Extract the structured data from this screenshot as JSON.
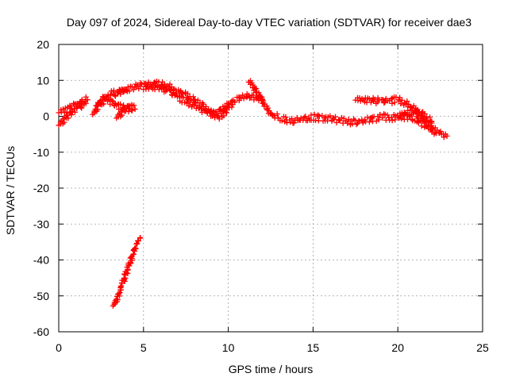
{
  "chart_data": {
    "type": "scatter",
    "title": "Day 097 of 2024, Sidereal Day-to-day VTEC variation (SDTVAR) for receiver dae3",
    "xlabel": "GPS time / hours",
    "ylabel": "SDTVAR / TECUs",
    "xlim": [
      0,
      25
    ],
    "ylim": [
      -60,
      20
    ],
    "xticks": [
      0,
      5,
      10,
      15,
      20,
      25
    ],
    "yticks": [
      -60,
      -50,
      -40,
      -30,
      -20,
      -10,
      0,
      10,
      20
    ],
    "grid": true,
    "marker": "+",
    "color": "#ff0000",
    "series": [
      {
        "name": "early-lower",
        "x": [
          0.0,
          0.2,
          0.4,
          0.6,
          0.8,
          1.0,
          1.2,
          1.4,
          1.6
        ],
        "y": [
          -2.5,
          -1.5,
          -0.5,
          0.5,
          1.5,
          2.3,
          2.8,
          3.2,
          3.6
        ]
      },
      {
        "name": "early-upper",
        "x": [
          0.0,
          0.3,
          0.6,
          0.9,
          1.2,
          1.5,
          1.7
        ],
        "y": [
          1.0,
          1.6,
          2.2,
          3.0,
          3.6,
          4.2,
          4.6
        ]
      },
      {
        "name": "hump-1",
        "x": [
          2.0,
          2.2,
          2.4,
          2.6,
          2.8,
          3.0,
          3.2,
          3.4,
          3.6,
          3.8,
          4.0
        ],
        "y": [
          0.5,
          2.0,
          3.5,
          5.0,
          5.5,
          6.0,
          6.2,
          6.5,
          6.7,
          7.0,
          7.2
        ]
      },
      {
        "name": "hump-2",
        "x": [
          2.2,
          2.5,
          2.8,
          3.1,
          3.4,
          3.7,
          4.0,
          4.3
        ],
        "y": [
          3.0,
          3.8,
          4.6,
          4.0,
          3.2,
          2.4,
          2.0,
          1.6
        ]
      },
      {
        "name": "dip",
        "x": [
          3.4,
          3.6,
          3.8,
          4.0,
          4.2,
          4.5
        ],
        "y": [
          -0.5,
          0.5,
          1.5,
          2.5,
          3.0,
          2.0
        ]
      },
      {
        "name": "main-arc",
        "x": [
          3.5,
          4.0,
          4.5,
          5.0,
          5.5,
          6.0,
          6.5,
          7.0,
          7.5,
          8.0,
          8.5,
          9.0,
          9.3,
          9.6,
          10.0,
          10.5,
          11.0,
          11.5,
          12.0,
          12.3,
          12.6,
          13.0,
          13.5,
          14.0,
          14.5,
          15.0,
          15.5,
          16.0,
          16.5,
          17.0,
          17.5,
          18.0,
          18.5,
          19.0,
          19.5,
          20.0,
          20.5,
          21.0,
          21.5,
          22.0,
          22.5,
          22.9
        ],
        "y": [
          6.5,
          7.5,
          8.2,
          8.8,
          9.0,
          8.8,
          8.2,
          7.2,
          6.0,
          4.5,
          3.0,
          1.0,
          -0.2,
          0.5,
          2.5,
          4.5,
          5.6,
          5.4,
          4.5,
          2.0,
          0.5,
          -0.5,
          -1.0,
          -1.2,
          -0.8,
          -0.2,
          -0.5,
          -0.6,
          -1.0,
          -1.4,
          -1.5,
          -1.2,
          -0.6,
          -0.2,
          -0.4,
          -0.5,
          0.0,
          -0.5,
          -2.0,
          -3.5,
          -4.5,
          -5.5
        ]
      },
      {
        "name": "secondary-arc",
        "x": [
          5.0,
          5.5,
          6.0,
          6.5,
          7.0,
          7.5,
          8.0,
          8.5,
          9.0,
          9.5,
          10.0
        ],
        "y": [
          7.5,
          8.2,
          8.0,
          7.0,
          5.5,
          4.0,
          3.0,
          2.0,
          0.5,
          1.5,
          3.5
        ]
      },
      {
        "name": "spike",
        "x": [
          11.2,
          11.4,
          11.6,
          11.8,
          12.0
        ],
        "y": [
          9.5,
          8.5,
          7.0,
          5.5,
          4.5
        ]
      },
      {
        "name": "late-upper",
        "x": [
          17.5,
          18.0,
          18.5,
          19.0,
          19.5,
          20.0,
          20.5,
          21.0,
          21.5,
          22.0
        ],
        "y": [
          4.5,
          4.6,
          4.4,
          4.3,
          4.4,
          4.6,
          3.5,
          2.0,
          0.5,
          -1.5
        ]
      },
      {
        "name": "late-lower",
        "x": [
          20.0,
          20.5,
          21.0,
          21.3,
          21.6,
          21.9,
          22.2
        ],
        "y": [
          0.0,
          1.0,
          1.5,
          0.0,
          -1.5,
          -3.0,
          -4.5
        ]
      },
      {
        "name": "steep-line",
        "x": [
          3.2,
          3.4,
          3.6,
          3.8,
          4.0,
          4.2,
          4.4,
          4.6,
          4.8
        ],
        "y": [
          -52.8,
          -51.0,
          -48.5,
          -46.0,
          -43.5,
          -41.0,
          -38.5,
          -36.0,
          -33.8
        ]
      }
    ]
  }
}
